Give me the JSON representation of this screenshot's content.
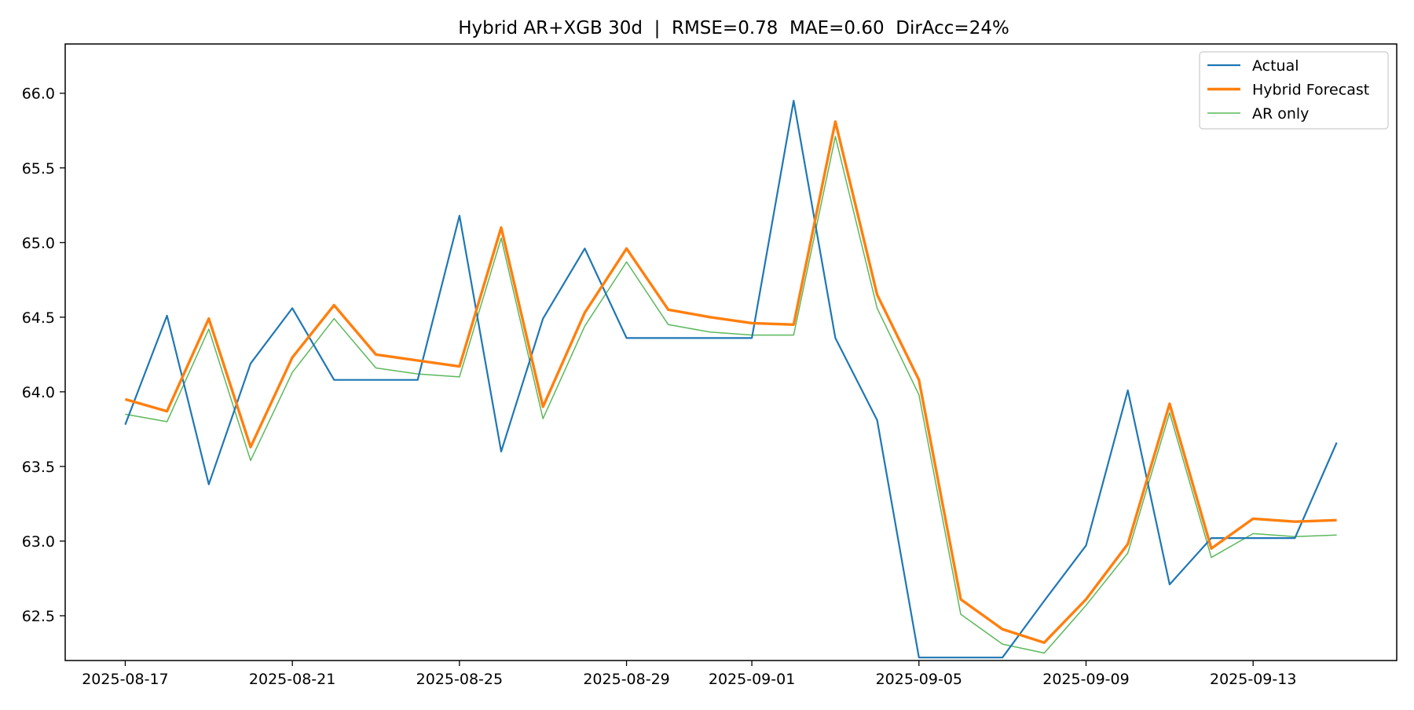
{
  "chart_data": {
    "type": "line",
    "title": "Hybrid AR+XGB 30d  |  RMSE=0.78  MAE=0.60  DirAcc=24%",
    "xlabel": "",
    "ylabel": "",
    "x": [
      "2025-08-17",
      "2025-08-18",
      "2025-08-19",
      "2025-08-20",
      "2025-08-21",
      "2025-08-22",
      "2025-08-23",
      "2025-08-24",
      "2025-08-25",
      "2025-08-26",
      "2025-08-27",
      "2025-08-28",
      "2025-08-29",
      "2025-08-30",
      "2025-08-31",
      "2025-09-01",
      "2025-09-02",
      "2025-09-03",
      "2025-09-04",
      "2025-09-05",
      "2025-09-06",
      "2025-09-07",
      "2025-09-08",
      "2025-09-09",
      "2025-09-10",
      "2025-09-11",
      "2025-09-12",
      "2025-09-13",
      "2025-09-14",
      "2025-09-15"
    ],
    "xticks": [
      "2025-08-17",
      "2025-08-21",
      "2025-08-25",
      "2025-08-29",
      "2025-09-01",
      "2025-09-05",
      "2025-09-09",
      "2025-09-13"
    ],
    "xlim": [
      "2025-08-15T13:30",
      "2025-09-16T10:30"
    ],
    "ylim": [
      62.2,
      66.33
    ],
    "yticks": [
      "62.5",
      "63.0",
      "63.5",
      "64.0",
      "64.5",
      "65.0",
      "65.5",
      "66.0"
    ],
    "grid": false,
    "legend_position": "top-right",
    "series": [
      {
        "name": "Actual",
        "color": "#1f77b4",
        "values": [
          63.78,
          64.51,
          63.38,
          64.19,
          64.56,
          64.08,
          64.08,
          64.08,
          65.18,
          63.6,
          64.49,
          64.96,
          64.36,
          64.36,
          64.36,
          64.36,
          65.95,
          64.36,
          63.81,
          62.22,
          62.22,
          62.22,
          62.6,
          62.97,
          64.01,
          62.71,
          63.02,
          63.02,
          63.02,
          63.66
        ]
      },
      {
        "name": "Hybrid Forecast",
        "color": "#ff7f0e",
        "values": [
          63.95,
          63.87,
          64.49,
          63.63,
          64.23,
          64.58,
          64.25,
          64.21,
          64.17,
          65.1,
          63.9,
          64.53,
          64.96,
          64.55,
          64.5,
          64.46,
          64.45,
          65.81,
          64.65,
          64.08,
          62.61,
          62.41,
          62.32,
          62.61,
          62.98,
          63.92,
          62.95,
          63.15,
          63.13,
          63.14
        ]
      },
      {
        "name": "AR only",
        "color": "#5cb85c",
        "values": [
          63.85,
          63.8,
          64.42,
          63.54,
          64.13,
          64.49,
          64.16,
          64.12,
          64.1,
          65.03,
          63.82,
          64.44,
          64.87,
          64.45,
          64.4,
          64.38,
          64.38,
          65.71,
          64.56,
          63.98,
          62.51,
          62.31,
          62.25,
          62.57,
          62.92,
          63.86,
          62.89,
          63.05,
          63.03,
          63.04
        ]
      }
    ]
  }
}
